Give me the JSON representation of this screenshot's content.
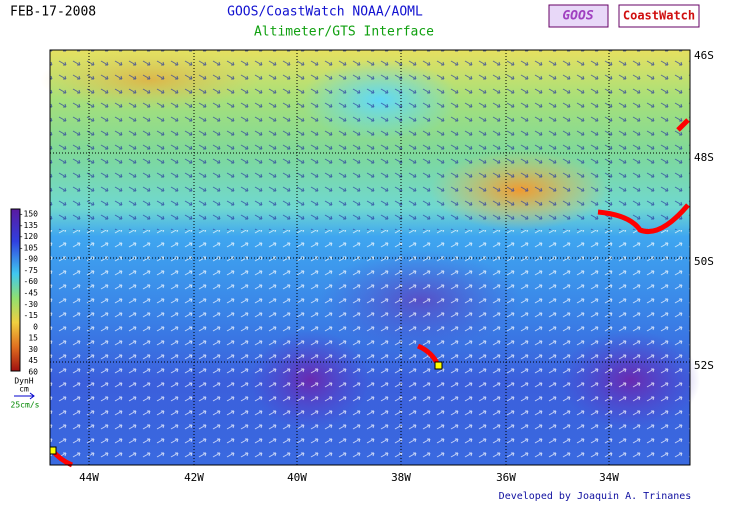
{
  "header": {
    "date": "FEB-17-2008",
    "title": "GOOS/CoastWatch  NOAA/AOML",
    "subtitle": "Altimeter/GTS Interface",
    "logos": [
      "GOOS",
      "CoastWatch"
    ]
  },
  "map": {
    "longitudes": [
      "44W",
      "42W",
      "40W",
      "38W",
      "36W",
      "34W"
    ],
    "latitudes": [
      "46S",
      "48S",
      "50S",
      "52S"
    ]
  },
  "colorbar": {
    "labels": [
      "-150",
      "-135",
      "-120",
      "-105",
      "-90",
      "-75",
      "-60",
      "-45",
      "-30",
      "-15",
      "0",
      "15",
      "30",
      "45",
      "60"
    ],
    "quantity": "DynH",
    "unit": "cm",
    "vector_scale": "25cm/s"
  },
  "footer": "Developed by Joaquin A. Trinanes"
}
